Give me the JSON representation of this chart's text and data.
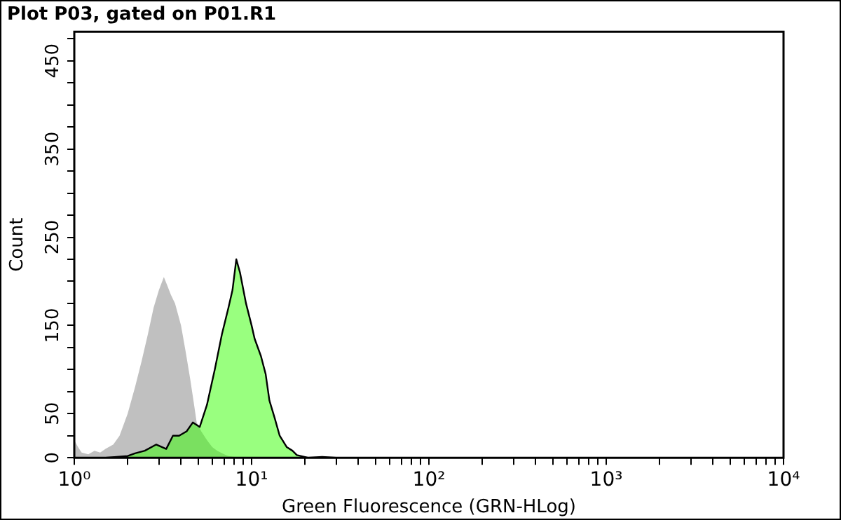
{
  "chart_data": {
    "type": "area",
    "title": "Plot P03, gated on P01.R1",
    "xlabel": "Green Fluorescence (GRN-HLog)",
    "ylabel": "Count",
    "log": "x",
    "xlim": [
      1,
      10000
    ],
    "ylim": [
      0,
      483
    ],
    "xticks": [
      {
        "value": 1,
        "label": "10⁰"
      },
      {
        "value": 2,
        "label": null
      },
      {
        "value": 3,
        "label": null
      },
      {
        "value": 4,
        "label": null
      },
      {
        "value": 5,
        "label": null
      },
      {
        "value": 6,
        "label": null
      },
      {
        "value": 7,
        "label": null
      },
      {
        "value": 8,
        "label": null
      },
      {
        "value": 9,
        "label": null
      },
      {
        "value": 10,
        "label": "10¹"
      },
      {
        "value": 20,
        "label": null
      },
      {
        "value": 30,
        "label": null
      },
      {
        "value": 40,
        "label": null
      },
      {
        "value": 50,
        "label": null
      },
      {
        "value": 60,
        "label": null
      },
      {
        "value": 70,
        "label": null
      },
      {
        "value": 80,
        "label": null
      },
      {
        "value": 90,
        "label": null
      },
      {
        "value": 100,
        "label": "10²"
      },
      {
        "value": 200,
        "label": null
      },
      {
        "value": 300,
        "label": null
      },
      {
        "value": 400,
        "label": null
      },
      {
        "value": 500,
        "label": null
      },
      {
        "value": 600,
        "label": null
      },
      {
        "value": 700,
        "label": null
      },
      {
        "value": 800,
        "label": null
      },
      {
        "value": 900,
        "label": null
      },
      {
        "value": 1000,
        "label": "10³"
      },
      {
        "value": 2000,
        "label": null
      },
      {
        "value": 3000,
        "label": null
      },
      {
        "value": 4000,
        "label": null
      },
      {
        "value": 5000,
        "label": null
      },
      {
        "value": 6000,
        "label": null
      },
      {
        "value": 7000,
        "label": null
      },
      {
        "value": 8000,
        "label": null
      },
      {
        "value": 9000,
        "label": null
      },
      {
        "value": 10000,
        "label": "10⁴"
      }
    ],
    "yticks": [
      0,
      {
        "value": 25,
        "label": null
      },
      50,
      {
        "value": 75,
        "label": null
      },
      {
        "value": 100,
        "label": null
      },
      {
        "value": 125,
        "label": null
      },
      150,
      {
        "value": 175,
        "label": null
      },
      {
        "value": 200,
        "label": null
      },
      {
        "value": 225,
        "label": null
      },
      250,
      {
        "value": 275,
        "label": null
      },
      {
        "value": 300,
        "label": null
      },
      {
        "value": 325,
        "label": null
      },
      350,
      {
        "value": 375,
        "label": null
      },
      {
        "value": 400,
        "label": null
      },
      {
        "value": 425,
        "label": null
      },
      450,
      {
        "value": 475,
        "label": null
      }
    ],
    "grid": false,
    "series": [
      {
        "color": "#c0c0c0",
        "x": [
          1,
          1.05,
          1.1,
          1.2,
          1.3,
          1.4,
          1.5,
          1.66,
          1.8,
          2.0,
          2.2,
          2.4,
          2.6,
          2.8,
          3.0,
          3.2,
          3.35,
          3.5,
          3.7,
          4.0,
          4.25,
          4.5,
          4.7,
          4.9,
          5.2,
          5.6,
          6.0,
          6.4,
          7.0,
          7.4,
          8.0,
          9.0
        ],
        "values": [
          20,
          12,
          6,
          4,
          8,
          6,
          10,
          15,
          25,
          50,
          80,
          110,
          140,
          170,
          190,
          205,
          195,
          185,
          175,
          150,
          120,
          90,
          65,
          40,
          30,
          20,
          12,
          8,
          4,
          2,
          1,
          0
        ]
      },
      {
        "color": "#33ff00",
        "x": [
          1.5,
          2.0,
          2.2,
          2.5,
          2.9,
          3.3,
          3.6,
          3.9,
          4.3,
          4.66,
          5.1,
          5.6,
          6.2,
          6.8,
          7.4,
          7.8,
          8.2,
          8.6,
          9.3,
          10.0,
          10.4,
          11.3,
          12.0,
          12.6,
          13.5,
          14.4,
          15.8,
          17,
          18,
          20.8,
          25,
          30
        ],
        "values": [
          0,
          2,
          5,
          8,
          15,
          10,
          25,
          25,
          30,
          40,
          35,
          60,
          100,
          140,
          170,
          190,
          225,
          210,
          175,
          150,
          135,
          115,
          95,
          65,
          45,
          25,
          12,
          8,
          3,
          0,
          1,
          0
        ]
      }
    ]
  }
}
